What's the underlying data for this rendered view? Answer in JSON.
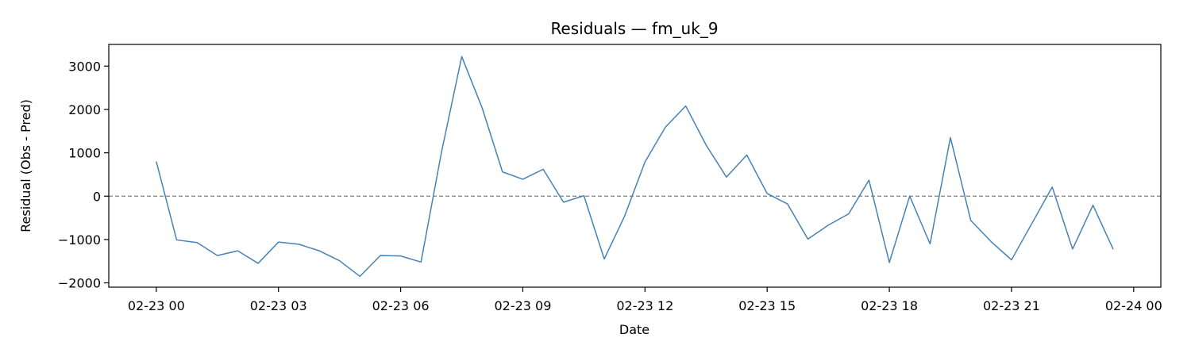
{
  "chart_data": {
    "type": "line",
    "title": "Residuals — fm_uk_9",
    "xlabel": "Date",
    "ylabel": "Residual (Obs - Pred)",
    "x_ticks": [
      "02-23 00",
      "02-23 03",
      "02-23 06",
      "02-23 09",
      "02-23 12",
      "02-23 15",
      "02-23 18",
      "02-23 21",
      "02-24 00"
    ],
    "y_ticks": [
      -2000,
      -1000,
      0,
      1000,
      2000,
      3000
    ],
    "ylim": [
      -2100,
      3500
    ],
    "xlim": [
      "02-22 22:50",
      "02-24 00:40"
    ],
    "grid": false,
    "reference_line": 0,
    "series_color": "#4682b4",
    "reference_color": "#808080",
    "series": [
      {
        "x": [
          "02-23 00:00",
          "02-23 00:30",
          "02-23 01:00",
          "02-23 01:30",
          "02-23 02:00",
          "02-23 02:30",
          "02-23 03:00",
          "02-23 03:30",
          "02-23 04:00",
          "02-23 04:30",
          "02-23 05:00",
          "02-23 05:30",
          "02-23 06:00",
          "02-23 06:30",
          "02-23 07:00",
          "02-23 07:30",
          "02-23 08:00",
          "02-23 08:30",
          "02-23 09:00",
          "02-23 09:30",
          "02-23 10:00",
          "02-23 10:30",
          "02-23 11:00",
          "02-23 11:30",
          "02-23 12:00",
          "02-23 12:30",
          "02-23 13:00",
          "02-23 13:30",
          "02-23 14:00",
          "02-23 14:30",
          "02-23 15:00",
          "02-23 15:30",
          "02-23 16:00",
          "02-23 16:30",
          "02-23 17:00",
          "02-23 17:30",
          "02-23 18:00",
          "02-23 18:30",
          "02-23 19:00",
          "02-23 19:30",
          "02-23 20:00",
          "02-23 20:30",
          "02-23 21:00",
          "02-23 21:30",
          "02-23 22:00",
          "02-23 22:30",
          "02-23 23:00",
          "02-23 23:30"
        ],
        "values": [
          800,
          -1010,
          -1070,
          -1370,
          -1260,
          -1550,
          -1060,
          -1110,
          -1260,
          -1490,
          -1850,
          -1370,
          -1380,
          -1520,
          1000,
          3220,
          2040,
          560,
          390,
          620,
          -140,
          10,
          -1450,
          -460,
          790,
          1590,
          2080,
          1180,
          440,
          950,
          60,
          -180,
          -990,
          -670,
          -410,
          370,
          -1530,
          0,
          -1100,
          1350,
          -560,
          -1050,
          -1470,
          -630,
          210,
          -1220,
          -210,
          -1230
        ]
      }
    ]
  }
}
